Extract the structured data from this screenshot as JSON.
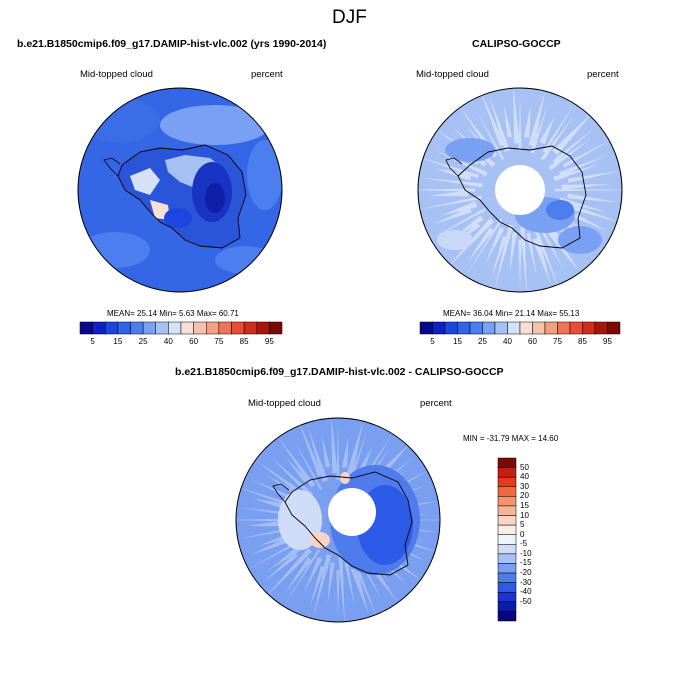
{
  "figure": {
    "title": "DJF"
  },
  "panels": [
    {
      "title": "b.e21.B1850cmip6.f09_g17.DAMIP-hist-vlc.002 (yrs 1990-2014)",
      "left_label": "Mid-topped cloud",
      "right_label": "percent",
      "stats": "MEAN=  25.14  Min=    5.63  Max=  60.71"
    },
    {
      "title": "CALIPSO-GOCCP",
      "left_label": "Mid-topped cloud",
      "right_label": "percent",
      "stats": "MEAN=  36.04  Min=  21.14  Max=  55.13"
    },
    {
      "title": "b.e21.B1850cmip6.f09_g17.DAMIP-hist-vlc.002 - CALIPSO-GOCCP",
      "left_label": "Mid-topped cloud",
      "right_label": "percent",
      "stats": "MIN = -31.79 MAX =  14.60"
    }
  ],
  "colorbar_abs": {
    "ticks": [
      "5",
      "15",
      "25",
      "40",
      "60",
      "75",
      "85",
      "95"
    ],
    "colors": [
      "#08088a",
      "#0f1fc4",
      "#1f45e0",
      "#2f63e8",
      "#4d7ef0",
      "#7aa0f3",
      "#a8c1f5",
      "#d5e2f8",
      "#f8e0d8",
      "#f6c2ae",
      "#f4a083",
      "#f0745a",
      "#e84d36",
      "#d02d1c",
      "#a8140c",
      "#7a0a05"
    ]
  },
  "colorbar_diff": {
    "ticks": [
      "50",
      "40",
      "30",
      "20",
      "15",
      "10",
      "5",
      "0",
      "-5",
      "-10",
      "-15",
      "-20",
      "-30",
      "-40",
      "-50"
    ],
    "colors": [
      "#7a0a05",
      "#c4200e",
      "#e8391c",
      "#f06a40",
      "#f4946e",
      "#f6b59a",
      "#f8d4c4",
      "#fbeee8",
      "#eef3fc",
      "#cfdcf8",
      "#a9c1f4",
      "#7b9ff0",
      "#4f7ced",
      "#2e5ae8",
      "#1934d0",
      "#0a1caa",
      "#08087a"
    ]
  }
}
